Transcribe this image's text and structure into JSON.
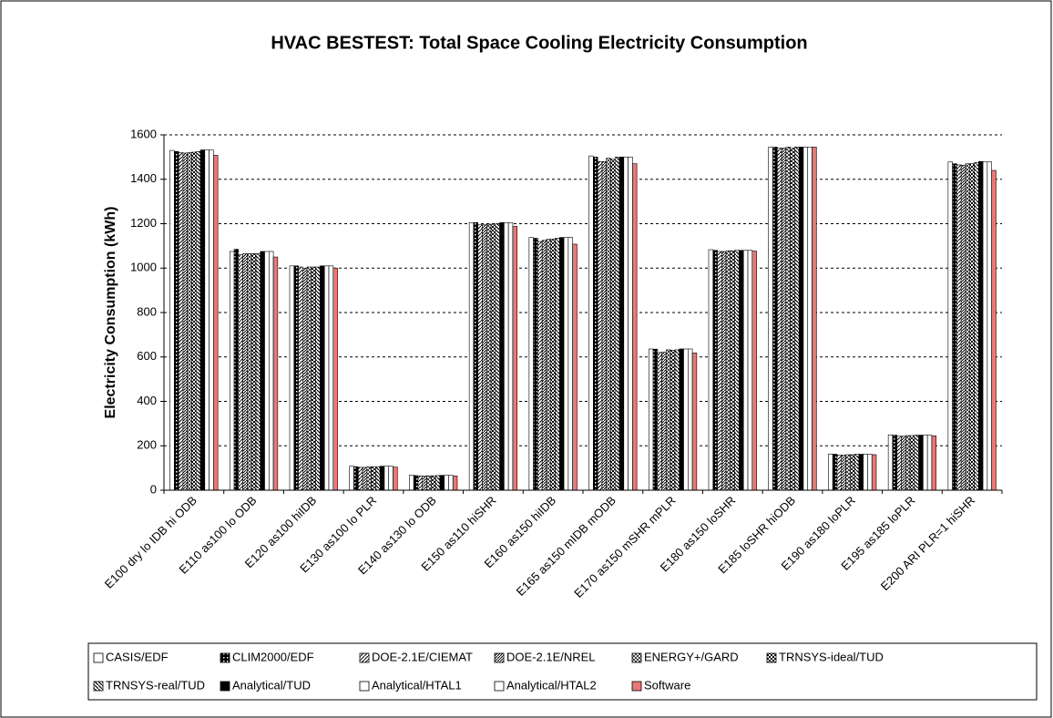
{
  "chart_data": {
    "type": "bar",
    "title": "HVAC BESTEST: Total Space Cooling Electricity Consumption",
    "y_label": "Electricity Consumption (kWh)",
    "categories": [
      "E100 dry lo IDB hi ODB",
      "E110 as100 lo ODB",
      "E120 as100 hiIDB",
      "E130 as100 lo PLR",
      "E140 as130 lo ODB",
      "E150 as110 hiSHR",
      "E160 as150 hiIDB",
      "E165 as150 mIDB mODB",
      "E170 as150 mSHR mPLR",
      "E180 as150 loSHR",
      "E185 loSHR hiODB",
      "E190 as180 loPLR",
      "E195 as185 loPLR",
      "E200 ARI PLR=1 hiSHR"
    ],
    "series": [
      {
        "name": "CASIS/EDF",
        "color": "#ffffff",
        "pattern": null,
        "values": [
          1530,
          1075,
          1010,
          108,
          68,
          1205,
          1138,
          1505,
          636,
          1083,
          1545,
          163,
          249,
          1478
        ]
      },
      {
        "name": "CLIM2000/EDF",
        "color": "#000000",
        "pattern": "dense",
        "values": [
          1525,
          1085,
          1010,
          106,
          66,
          1205,
          1135,
          1500,
          635,
          1080,
          1545,
          162,
          248,
          1470
        ]
      },
      {
        "name": "DOE-2.1E/CIEMAT",
        "color": "#ffffff",
        "pattern": "diag",
        "values": [
          1520,
          1060,
          1005,
          103,
          64,
          1195,
          1120,
          1480,
          620,
          1075,
          1540,
          158,
          243,
          1465
        ]
      },
      {
        "name": "DOE-2.1E/NREL",
        "color": "#ffffff",
        "pattern": "diagdense",
        "values": [
          1518,
          1065,
          1000,
          103,
          64,
          1195,
          1125,
          1480,
          622,
          1075,
          1540,
          158,
          243,
          1463
        ]
      },
      {
        "name": "ENERGY+/GARD",
        "color": "#ffffff",
        "pattern": "hatch",
        "values": [
          1520,
          1065,
          1005,
          105,
          65,
          1198,
          1130,
          1495,
          632,
          1078,
          1545,
          160,
          246,
          1470
        ]
      },
      {
        "name": "TRNSYS-ideal/TUD",
        "color": "#ffffff",
        "pattern": "check",
        "values": [
          1522,
          1065,
          1005,
          106,
          65,
          1195,
          1130,
          1490,
          630,
          1078,
          1540,
          160,
          246,
          1470
        ]
      },
      {
        "name": "TRNSYS-real/TUD",
        "color": "#ffffff",
        "pattern": "diagback",
        "values": [
          1525,
          1065,
          1005,
          106,
          66,
          1200,
          1135,
          1500,
          632,
          1080,
          1545,
          162,
          248,
          1475
        ]
      },
      {
        "name": "Analytical/TUD",
        "color": "#000000",
        "pattern": null,
        "values": [
          1532,
          1075,
          1010,
          108,
          67,
          1205,
          1138,
          1500,
          636,
          1080,
          1545,
          162,
          248,
          1480
        ]
      },
      {
        "name": "Analytical/HTAL1",
        "color": "#ffffff",
        "pattern": null,
        "values": [
          1532,
          1075,
          1010,
          108,
          67,
          1205,
          1138,
          1500,
          636,
          1080,
          1545,
          162,
          248,
          1478
        ]
      },
      {
        "name": "Analytical/HTAL2",
        "color": "#ffffff",
        "pattern": null,
        "values": [
          1532,
          1075,
          1010,
          108,
          67,
          1205,
          1138,
          1500,
          636,
          1080,
          1545,
          162,
          248,
          1478
        ]
      },
      {
        "name": "Software",
        "color": "#e87878",
        "pattern": null,
        "values": [
          1508,
          1050,
          1000,
          104,
          64,
          1188,
          1108,
          1470,
          618,
          1077,
          1545,
          160,
          245,
          1440
        ]
      }
    ],
    "ylim": [
      0,
      1600
    ],
    "yticks": [
      0,
      200,
      400,
      600,
      800,
      1000,
      1200,
      1400,
      1600
    ],
    "grid": true,
    "legend": "bottom"
  }
}
